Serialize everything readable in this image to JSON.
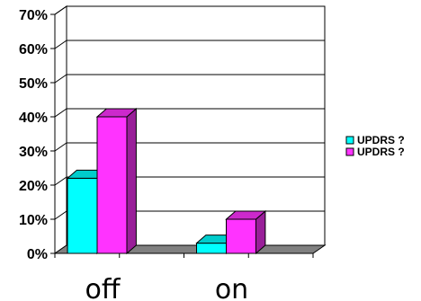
{
  "chart_data": {
    "type": "bar",
    "style": "3d-clustered-column",
    "categories": [
      "off",
      "on"
    ],
    "series": [
      {
        "name": "UPDRS  ?",
        "values": [
          22,
          3
        ],
        "color": "#00ffff"
      },
      {
        "name": "UPDRS  ?",
        "values": [
          40,
          10
        ],
        "color": "#ff33ff"
      }
    ],
    "ylim": [
      0,
      70
    ],
    "yticks": [
      "0%",
      "10%",
      "20%",
      "30%",
      "40%",
      "50%",
      "60%",
      "70%"
    ],
    "grid": true,
    "legend_position": "right"
  }
}
